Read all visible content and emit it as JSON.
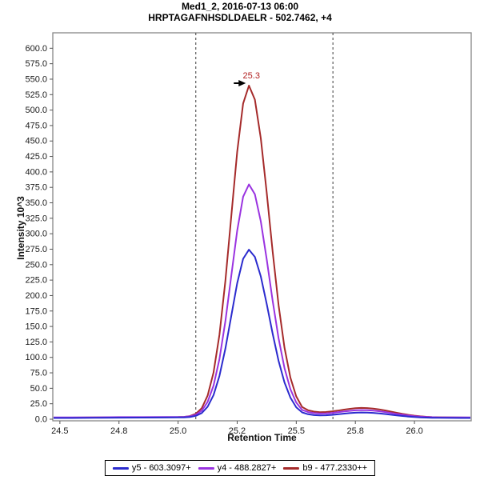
{
  "chart_data": {
    "type": "line",
    "title_line1": "Med1_2, 2016-07-13 06:00",
    "title_line2": "HRPTAGAFNHSDLDAELR - 502.7462, +4",
    "xlabel": "Retention Time",
    "ylabel": "Intensity 10^3",
    "xlim": [
      24.47,
      26.24
    ],
    "ylim": [
      0,
      625
    ],
    "grid": false,
    "legend_position": "bottom-center",
    "colors": {
      "axis": "#878787",
      "boundary": "#3a3a3a",
      "tick_text": "#1a1a1a",
      "annotation": "#b22222"
    },
    "x_ticks": [
      {
        "v": 24.5,
        "label": "24.5"
      },
      {
        "v": 24.75,
        "label": "24.8"
      },
      {
        "v": 25.0,
        "label": "25.0"
      },
      {
        "v": 25.25,
        "label": "25.2"
      },
      {
        "v": 25.5,
        "label": "25.5"
      },
      {
        "v": 25.75,
        "label": "25.8"
      },
      {
        "v": 26.0,
        "label": "26.0"
      }
    ],
    "y_ticks": [
      {
        "v": 0,
        "label": "0.0"
      },
      {
        "v": 25,
        "label": "25.0"
      },
      {
        "v": 50,
        "label": "50.0"
      },
      {
        "v": 75,
        "label": "75.0"
      },
      {
        "v": 100,
        "label": "100.0"
      },
      {
        "v": 125,
        "label": "125.0"
      },
      {
        "v": 150,
        "label": "150.0"
      },
      {
        "v": 175,
        "label": "175.0"
      },
      {
        "v": 200,
        "label": "200.0"
      },
      {
        "v": 225,
        "label": "225.0"
      },
      {
        "v": 250,
        "label": "250.0"
      },
      {
        "v": 275,
        "label": "275.0"
      },
      {
        "v": 300,
        "label": "300.0"
      },
      {
        "v": 325,
        "label": "325.0"
      },
      {
        "v": 350,
        "label": "350.0"
      },
      {
        "v": 375,
        "label": "375.0"
      },
      {
        "v": 400,
        "label": "400.0"
      },
      {
        "v": 425,
        "label": "425.0"
      },
      {
        "v": 450,
        "label": "450.0"
      },
      {
        "v": 475,
        "label": "475.0"
      },
      {
        "v": 500,
        "label": "500.0"
      },
      {
        "v": 525,
        "label": "525.0"
      },
      {
        "v": 550,
        "label": "550.0"
      },
      {
        "v": 575,
        "label": "575.0"
      },
      {
        "v": 600,
        "label": "600.0"
      }
    ],
    "peak_boundaries": {
      "start_rt": 25.075,
      "end_rt": 25.655
    },
    "annotation": {
      "label": "25.3",
      "rt": 25.3,
      "value": 539.6
    },
    "x": [
      24.45,
      24.55,
      24.65,
      24.75,
      24.85,
      24.95,
      25.0,
      25.025,
      25.05,
      25.075,
      25.1,
      25.125,
      25.15,
      25.175,
      25.2,
      25.225,
      25.25,
      25.275,
      25.3,
      25.325,
      25.35,
      25.375,
      25.4,
      25.425,
      25.45,
      25.475,
      25.5,
      25.525,
      25.55,
      25.575,
      25.6,
      25.625,
      25.65,
      25.675,
      25.7,
      25.725,
      25.75,
      25.775,
      25.8,
      25.825,
      25.85,
      25.875,
      25.9,
      25.925,
      25.95,
      25.975,
      26.0,
      26.025,
      26.05,
      26.075,
      26.1,
      26.15,
      26.2,
      26.25
    ],
    "series": [
      {
        "id": "y5",
        "name": "y5 - 603.3097+",
        "color": "#2b2bce",
        "values": [
          2.0,
          2.0,
          2.2,
          2.5,
          2.6,
          2.7,
          2.8,
          3.0,
          3.5,
          5.4,
          10.0,
          20.2,
          39.0,
          70.0,
          114.0,
          167.0,
          220.0,
          259.5,
          274.2,
          262.6,
          231.0,
          186.5,
          138.4,
          94.5,
          59.5,
          34.9,
          19.3,
          11.0,
          8.0,
          6.6,
          6.2,
          6.4,
          7.0,
          7.9,
          8.9,
          9.8,
          10.5,
          10.9,
          10.7,
          10.2,
          9.4,
          8.4,
          7.3,
          6.2,
          5.2,
          4.3,
          3.6,
          3.0,
          2.6,
          2.3,
          2.2,
          2.1,
          2.0,
          2.0
        ]
      },
      {
        "id": "y4",
        "name": "y4 - 488.2827+",
        "color": "#9a33e0",
        "values": [
          2.8,
          2.8,
          3.0,
          3.3,
          3.4,
          3.5,
          3.6,
          3.8,
          4.6,
          7.4,
          13.9,
          28.0,
          54.2,
          97.2,
          158.2,
          231.9,
          305.0,
          359.8,
          379.8,
          363.9,
          320.0,
          258.5,
          191.7,
          131.0,
          82.7,
          48.5,
          27.0,
          15.0,
          11.5,
          9.8,
          9.2,
          9.4,
          10.1,
          11.2,
          12.4,
          13.5,
          14.3,
          14.7,
          14.5,
          13.9,
          12.9,
          11.6,
          10.1,
          8.6,
          7.2,
          5.9,
          4.9,
          4.1,
          3.6,
          3.2,
          3.0,
          2.9,
          2.8,
          2.8
        ]
      },
      {
        "id": "b9",
        "name": "b9 - 477.2330++",
        "color": "#a52a2a",
        "values": [
          2.6,
          2.6,
          2.8,
          3.0,
          3.1,
          3.2,
          3.3,
          3.7,
          5.1,
          8.8,
          17.9,
          38.0,
          75.3,
          136.5,
          223.4,
          328.3,
          432.6,
          510.6,
          539.6,
          516.9,
          454.3,
          366.5,
          271.4,
          184.8,
          115.8,
          67.1,
          36.9,
          19.7,
          14.5,
          12.3,
          11.4,
          11.6,
          12.5,
          13.9,
          15.4,
          16.7,
          17.7,
          18.2,
          18.0,
          17.2,
          15.9,
          14.2,
          12.3,
          10.4,
          8.6,
          7.0,
          5.7,
          4.7,
          3.9,
          3.4,
          3.1,
          2.8,
          2.7,
          2.6
        ]
      }
    ]
  }
}
